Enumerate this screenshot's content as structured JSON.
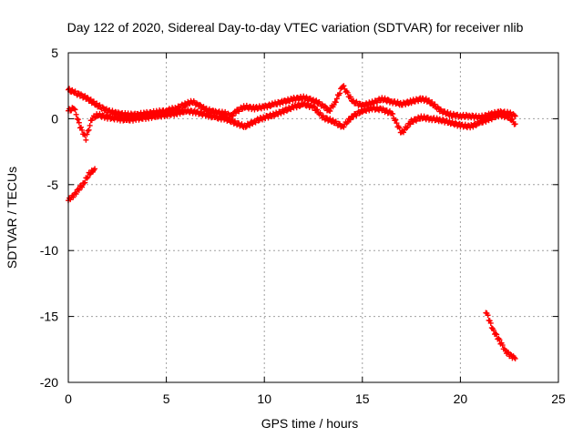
{
  "chart_data": {
    "type": "scatter",
    "title": "Day 122 of 2020, Sidereal Day-to-day VTEC variation (SDTVAR) for receiver nlib",
    "xlabel": "GPS time / hours",
    "ylabel": "SDTVAR / TECUs",
    "xlim": [
      0,
      25
    ],
    "ylim": [
      -20,
      5
    ],
    "xticks": [
      0,
      5,
      10,
      15,
      20,
      25
    ],
    "yticks": [
      -20,
      -15,
      -10,
      -5,
      0,
      5
    ],
    "xtick_labels": [
      "0",
      "5",
      "10",
      "15",
      "20",
      "25"
    ],
    "ytick_labels": [
      "-20",
      "-15",
      "-10",
      "-5",
      "0",
      "5"
    ],
    "grid": true,
    "marker": "+",
    "marker_color": "#ff0000",
    "series": [
      {
        "name": "main-band-upper",
        "x": [
          0.0,
          0.3,
          0.6,
          0.9,
          1.2,
          1.5,
          2.0,
          2.5,
          3.0,
          3.5,
          4.0,
          4.5,
          5.0,
          5.5,
          6.0,
          6.3,
          6.6,
          7.0,
          7.5,
          8.0,
          8.3,
          8.6,
          9.0,
          9.5,
          10.0,
          10.5,
          11.0,
          11.5,
          12.0,
          12.5,
          13.0,
          13.3,
          13.6,
          14.0,
          14.5,
          15.0,
          15.5,
          16.0,
          16.5,
          17.0,
          17.5,
          18.0,
          18.3,
          18.6,
          19.0,
          19.5,
          20.0,
          20.5,
          21.0,
          21.5,
          22.0,
          22.5,
          22.8
        ],
        "y": [
          2.2,
          2.0,
          1.8,
          1.6,
          1.3,
          1.0,
          0.6,
          0.4,
          0.3,
          0.3,
          0.4,
          0.5,
          0.6,
          0.8,
          1.1,
          1.3,
          1.1,
          0.7,
          0.5,
          0.4,
          0.2,
          0.6,
          0.9,
          0.8,
          0.9,
          1.1,
          1.3,
          1.5,
          1.6,
          1.4,
          1.0,
          0.6,
          1.2,
          2.5,
          1.3,
          1.0,
          1.2,
          1.5,
          1.3,
          1.1,
          1.3,
          1.5,
          1.4,
          1.1,
          0.6,
          0.3,
          0.2,
          0.2,
          0.1,
          0.3,
          0.5,
          0.4,
          0.2
        ]
      },
      {
        "name": "main-band-lower",
        "x": [
          0.0,
          0.3,
          0.6,
          0.9,
          1.2,
          1.5,
          2.0,
          2.5,
          3.0,
          3.5,
          4.0,
          4.5,
          5.0,
          5.5,
          6.0,
          6.5,
          7.0,
          7.5,
          8.0,
          8.5,
          9.0,
          9.5,
          10.0,
          10.5,
          11.0,
          11.5,
          12.0,
          12.5,
          13.0,
          13.5,
          14.0,
          14.5,
          15.0,
          15.5,
          16.0,
          16.5,
          17.0,
          17.5,
          18.0,
          18.5,
          19.0,
          19.5,
          20.0,
          20.5,
          21.0,
          21.5,
          22.0,
          22.5,
          22.8
        ],
        "y": [
          0.6,
          0.8,
          -0.6,
          -1.5,
          0.0,
          0.3,
          0.1,
          0.0,
          -0.1,
          0.0,
          0.1,
          0.2,
          0.3,
          0.4,
          0.6,
          0.5,
          0.3,
          0.1,
          0.0,
          -0.3,
          -0.6,
          -0.2,
          0.1,
          0.3,
          0.6,
          0.9,
          1.1,
          0.9,
          0.1,
          -0.2,
          -0.6,
          0.2,
          0.6,
          0.8,
          0.7,
          0.4,
          -1.1,
          -0.2,
          0.1,
          0.0,
          -0.1,
          -0.3,
          -0.5,
          -0.6,
          -0.3,
          0.0,
          0.3,
          0.1,
          -0.4
        ]
      },
      {
        "name": "early-negative-arc",
        "x": [
          0.0,
          0.15,
          0.3,
          0.45,
          0.6,
          0.75,
          0.9,
          1.05,
          1.2,
          1.35
        ],
        "y": [
          -6.2,
          -6.0,
          -5.8,
          -5.5,
          -5.2,
          -5.0,
          -4.6,
          -4.2,
          -4.0,
          -3.8
        ]
      },
      {
        "name": "late-negative-arc",
        "x": [
          21.3,
          21.5,
          21.7,
          21.9,
          22.1,
          22.3,
          22.5,
          22.7,
          22.8
        ],
        "y": [
          -14.6,
          -15.4,
          -16.1,
          -16.6,
          -17.1,
          -17.6,
          -17.9,
          -18.1,
          -18.2
        ]
      }
    ]
  }
}
